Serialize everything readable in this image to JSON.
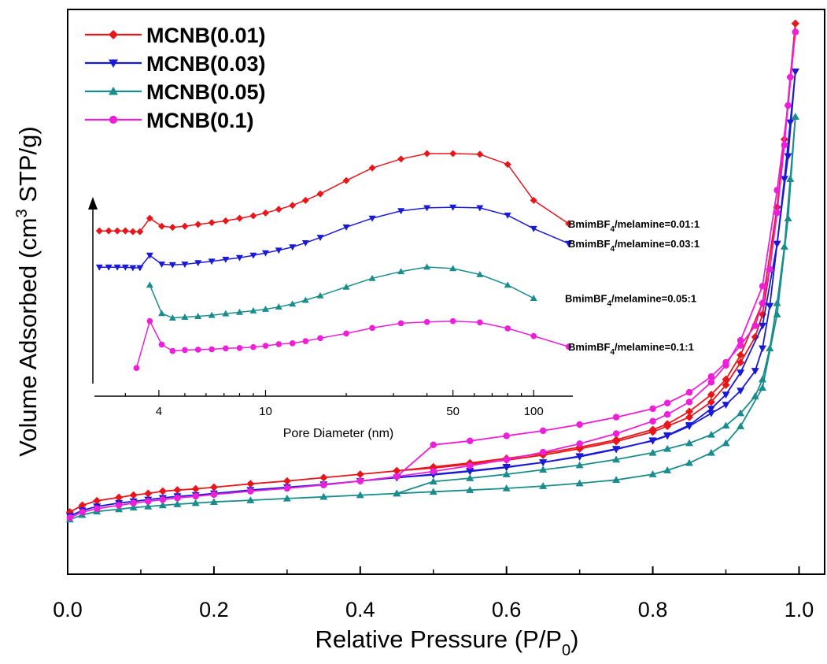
{
  "chart_data": [
    {
      "type": "line",
      "title": "",
      "xlabel": "Relative Pressure (P/P",
      "xlabel_subscript": "0",
      "xlabel_suffix": ")",
      "ylabel": "Volume Adsorbed (cm",
      "ylabel_superscript": "3",
      "ylabel_suffix": " STP/g)",
      "xlim": [
        0,
        1.035
      ],
      "ylim": [
        0,
        1
      ],
      "x_ticks": [
        "0.0",
        "0.2",
        "0.4",
        "0.6",
        "0.8",
        "1.0"
      ],
      "x_tick_values": [
        0,
        0.2,
        0.4,
        0.6,
        0.8,
        1.0
      ],
      "y_tick_labels_shown": false,
      "grid": false,
      "legend_position": "top-left",
      "series": [
        {
          "name": "MCNB(0.01)",
          "color": "#e8161b",
          "marker": "diamond",
          "adsorption_x": [
            0.003,
            0.02,
            0.04,
            0.07,
            0.09,
            0.11,
            0.13,
            0.15,
            0.175,
            0.2,
            0.25,
            0.3,
            0.35,
            0.4,
            0.45,
            0.5,
            0.55,
            0.6,
            0.65,
            0.7,
            0.75,
            0.8,
            0.82,
            0.85,
            0.88,
            0.9,
            0.92,
            0.95,
            0.97,
            0.985,
            0.995
          ],
          "adsorption_y": [
            0.11,
            0.122,
            0.13,
            0.136,
            0.14,
            0.143,
            0.147,
            0.149,
            0.151,
            0.154,
            0.16,
            0.165,
            0.171,
            0.177,
            0.183,
            0.19,
            0.197,
            0.205,
            0.214,
            0.225,
            0.238,
            0.256,
            0.266,
            0.288,
            0.318,
            0.345,
            0.388,
            0.48,
            0.65,
            0.83,
            0.975
          ],
          "desorption_x": [
            0.995,
            0.988,
            0.98,
            0.97,
            0.96,
            0.95,
            0.94,
            0.92,
            0.9,
            0.88,
            0.85,
            0.82,
            0.8,
            0.75,
            0.7,
            0.65,
            0.6,
            0.55,
            0.5,
            0.45
          ],
          "desorption_y": [
            0.975,
            0.88,
            0.77,
            0.65,
            0.54,
            0.46,
            0.42,
            0.375,
            0.335,
            0.305,
            0.278,
            0.262,
            0.252,
            0.235,
            0.222,
            0.211,
            0.202,
            0.195,
            0.188,
            0.183
          ]
        },
        {
          "name": "MCNB(0.03)",
          "color": "#1a1ad6",
          "marker": "triangle-down",
          "adsorption_x": [
            0.003,
            0.02,
            0.04,
            0.07,
            0.09,
            0.11,
            0.13,
            0.15,
            0.175,
            0.2,
            0.25,
            0.3,
            0.35,
            0.4,
            0.45,
            0.5,
            0.55,
            0.6,
            0.65,
            0.7,
            0.75,
            0.8,
            0.82,
            0.85,
            0.88,
            0.9,
            0.92,
            0.95,
            0.97,
            0.985,
            0.995
          ],
          "adsorption_y": [
            0.103,
            0.113,
            0.12,
            0.126,
            0.129,
            0.132,
            0.135,
            0.138,
            0.14,
            0.143,
            0.149,
            0.154,
            0.159,
            0.165,
            0.171,
            0.177,
            0.183,
            0.19,
            0.198,
            0.208,
            0.221,
            0.237,
            0.246,
            0.264,
            0.293,
            0.318,
            0.357,
            0.44,
            0.585,
            0.74,
            0.89
          ],
          "desorption_x": [
            0.995,
            0.988,
            0.98,
            0.97,
            0.96,
            0.95,
            0.94,
            0.92,
            0.9,
            0.88,
            0.85,
            0.82,
            0.8,
            0.75,
            0.7,
            0.65,
            0.6,
            0.55,
            0.5,
            0.45
          ],
          "desorption_y": [
            0.89,
            0.8,
            0.7,
            0.585,
            0.475,
            0.4,
            0.36,
            0.325,
            0.3,
            0.285,
            0.262,
            0.245,
            0.236,
            0.222,
            0.209,
            0.198,
            0.189,
            0.182,
            0.176,
            0.171
          ]
        },
        {
          "name": "MCNB(0.05)",
          "color": "#1a8c8c",
          "marker": "triangle-up",
          "adsorption_x": [
            0.003,
            0.02,
            0.04,
            0.07,
            0.09,
            0.11,
            0.13,
            0.15,
            0.175,
            0.2,
            0.25,
            0.3,
            0.35,
            0.4,
            0.45,
            0.5,
            0.55,
            0.6,
            0.65,
            0.7,
            0.75,
            0.8,
            0.82,
            0.85,
            0.88,
            0.9,
            0.92,
            0.95,
            0.97,
            0.985,
            0.995
          ],
          "adsorption_y": [
            0.097,
            0.105,
            0.111,
            0.115,
            0.118,
            0.12,
            0.122,
            0.124,
            0.126,
            0.128,
            0.131,
            0.134,
            0.137,
            0.14,
            0.143,
            0.146,
            0.149,
            0.152,
            0.156,
            0.161,
            0.167,
            0.177,
            0.184,
            0.197,
            0.215,
            0.232,
            0.262,
            0.33,
            0.46,
            0.63,
            0.81
          ],
          "desorption_x": [
            0.995,
            0.988,
            0.98,
            0.97,
            0.96,
            0.95,
            0.94,
            0.92,
            0.9,
            0.88,
            0.85,
            0.82,
            0.8,
            0.75,
            0.7,
            0.65,
            0.6,
            0.55,
            0.5,
            0.45
          ],
          "desorption_y": [
            0.81,
            0.7,
            0.58,
            0.48,
            0.4,
            0.345,
            0.315,
            0.285,
            0.263,
            0.247,
            0.232,
            0.222,
            0.215,
            0.203,
            0.193,
            0.185,
            0.177,
            0.17,
            0.164,
            0.143
          ]
        },
        {
          "name": "MCNB(0.1)",
          "color": "#ee1fd8",
          "marker": "circle",
          "adsorption_x": [
            0.003,
            0.02,
            0.04,
            0.07,
            0.09,
            0.11,
            0.13,
            0.15,
            0.175,
            0.2,
            0.25,
            0.3,
            0.35,
            0.4,
            0.45,
            0.5,
            0.55,
            0.6,
            0.65,
            0.7,
            0.75,
            0.8,
            0.82,
            0.85,
            0.88,
            0.9,
            0.92,
            0.95,
            0.97,
            0.985,
            0.995
          ],
          "adsorption_y": [
            0.1,
            0.11,
            0.116,
            0.122,
            0.126,
            0.129,
            0.132,
            0.135,
            0.138,
            0.141,
            0.147,
            0.152,
            0.158,
            0.165,
            0.173,
            0.182,
            0.192,
            0.203,
            0.216,
            0.231,
            0.249,
            0.271,
            0.283,
            0.305,
            0.34,
            0.37,
            0.414,
            0.51,
            0.68,
            0.83,
            0.96
          ],
          "desorption_x": [
            0.995,
            0.988,
            0.98,
            0.97,
            0.96,
            0.95,
            0.94,
            0.92,
            0.9,
            0.88,
            0.85,
            0.82,
            0.8,
            0.75,
            0.7,
            0.65,
            0.6,
            0.55,
            0.5,
            0.45
          ],
          "desorption_y": [
            0.96,
            0.88,
            0.76,
            0.64,
            0.54,
            0.48,
            0.44,
            0.405,
            0.375,
            0.35,
            0.322,
            0.303,
            0.293,
            0.278,
            0.265,
            0.254,
            0.245,
            0.236,
            0.229,
            0.173
          ]
        }
      ]
    },
    {
      "type": "line",
      "title": "",
      "xlabel": "Pore Diameter (nm)",
      "ylabel": "",
      "x_scale": "log",
      "xlim": [
        2.3,
        140
      ],
      "ylim": [
        0,
        1
      ],
      "x_ticks": [
        "4",
        "10",
        "50",
        "100"
      ],
      "x_tick_values": [
        4,
        10,
        50,
        100
      ],
      "grid": false,
      "y_axis_arrow": true,
      "series": [
        {
          "label": "BmimBF",
          "label_subscript": "4",
          "label_suffix": "/melamine=0.01:1",
          "color": "#e8161b",
          "marker": "diamond",
          "x": [
            2.4,
            2.6,
            2.8,
            3.0,
            3.2,
            3.4,
            3.7,
            4.1,
            4.5,
            5.0,
            5.6,
            6.3,
            7.1,
            8.0,
            9.0,
            10.0,
            11.2,
            12.6,
            14.1,
            16.0,
            20.0,
            25.0,
            32.0,
            40.0,
            50.0,
            63.0,
            80.0,
            100.0,
            135.0
          ],
          "y": [
            0.815,
            0.815,
            0.815,
            0.815,
            0.813,
            0.813,
            0.85,
            0.828,
            0.825,
            0.828,
            0.833,
            0.838,
            0.843,
            0.85,
            0.857,
            0.865,
            0.875,
            0.886,
            0.9,
            0.918,
            0.955,
            0.99,
            1.015,
            1.03,
            1.03,
            1.028,
            1.0,
            0.9,
            0.835
          ],
          "print_y_offset": 0.0
        },
        {
          "label": "BmimBF",
          "label_subscript": "4",
          "label_suffix": "/melamine=0.03:1",
          "color": "#1a1ad6",
          "marker": "triangle-down",
          "x": [
            2.4,
            2.6,
            2.8,
            3.0,
            3.2,
            3.4,
            3.7,
            4.1,
            4.5,
            5.0,
            5.6,
            6.3,
            7.1,
            8.0,
            9.0,
            10.0,
            11.2,
            12.6,
            14.1,
            16.0,
            20.0,
            25.0,
            32.0,
            40.0,
            50.0,
            63.0,
            80.0,
            100.0,
            135.0
          ],
          "y": [
            0.44,
            0.44,
            0.44,
            0.44,
            0.438,
            0.438,
            0.48,
            0.45,
            0.448,
            0.45,
            0.455,
            0.46,
            0.466,
            0.472,
            0.48,
            0.488,
            0.497,
            0.508,
            0.522,
            0.54,
            0.575,
            0.605,
            0.63,
            0.64,
            0.642,
            0.64,
            0.615,
            0.57,
            0.52
          ]
        },
        {
          "label": "BmimBF",
          "label_subscript": "4",
          "label_suffix": "/melamine=0.05:1",
          "color": "#1a8c8c",
          "marker": "triangle-up",
          "x": [
            3.7,
            4.1,
            4.5,
            5.0,
            5.6,
            6.3,
            7.1,
            8.0,
            9.0,
            10.0,
            11.2,
            12.6,
            14.1,
            16.0,
            20.0,
            25.0,
            32.0,
            40.0,
            50.0,
            63.0,
            80.0,
            100.0,
            135.0
          ],
          "y": [
            0.3,
            0.225,
            0.213,
            0.215,
            0.217,
            0.22,
            0.224,
            0.228,
            0.232,
            0.236,
            0.242,
            0.25,
            0.26,
            0.272,
            0.295,
            0.318,
            0.336,
            0.348,
            0.344,
            0.328,
            0.3,
            0.265,
            0.232
          ],
          "x_plot_max": 105
        },
        {
          "label": "BmimBF",
          "label_subscript": "4",
          "label_suffix": "/melamine=0.1:1",
          "color": "#ee1fd8",
          "marker": "circle",
          "x": [
            3.3,
            3.7,
            4.1,
            4.5,
            5.0,
            5.6,
            6.3,
            7.1,
            8.0,
            9.0,
            10.0,
            11.2,
            12.6,
            14.1,
            16.0,
            20.0,
            25.0,
            32.0,
            40.0,
            50.0,
            63.0,
            80.0,
            100.0,
            135.0
          ],
          "y": [
            0.02,
            0.13,
            0.075,
            0.06,
            0.062,
            0.063,
            0.064,
            0.066,
            0.067,
            0.069,
            0.072,
            0.076,
            0.078,
            0.083,
            0.09,
            0.101,
            0.114,
            0.125,
            0.128,
            0.13,
            0.127,
            0.113,
            0.095,
            0.07
          ]
        }
      ]
    }
  ]
}
